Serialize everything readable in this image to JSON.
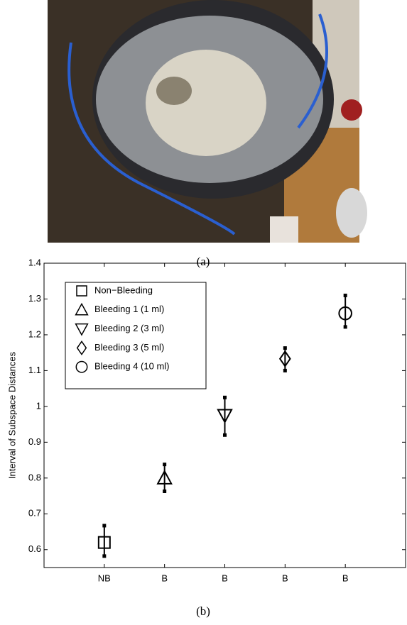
{
  "captions": {
    "a": "(a)",
    "b": "(b)"
  },
  "chart_data": {
    "type": "errorbar",
    "ylabel": "Interval of Subspace Distances",
    "categories": [
      "NB",
      "B",
      "B",
      "B",
      "B"
    ],
    "values": [
      0.62,
      0.8,
      0.975,
      1.133,
      1.26
    ],
    "lower": [
      0.582,
      0.763,
      0.92,
      1.1,
      1.222
    ],
    "upper": [
      0.667,
      0.838,
      1.025,
      1.163,
      1.31
    ],
    "markers": [
      "square",
      "triangle-up",
      "triangle-down",
      "diamond",
      "circle"
    ],
    "legend": [
      "Non−Bleeding",
      "Bleeding 1 (1 ml)",
      "Bleeding 2 (3 ml)",
      "Bleeding 3 (5 ml)",
      "Bleeding 4 (10 ml)"
    ],
    "color": "#000000",
    "ylim": [
      0.55,
      1.4
    ],
    "yticks": [
      0.6,
      0.7,
      0.8,
      0.9,
      1,
      1.1,
      1.2,
      1.3,
      1.4
    ]
  }
}
